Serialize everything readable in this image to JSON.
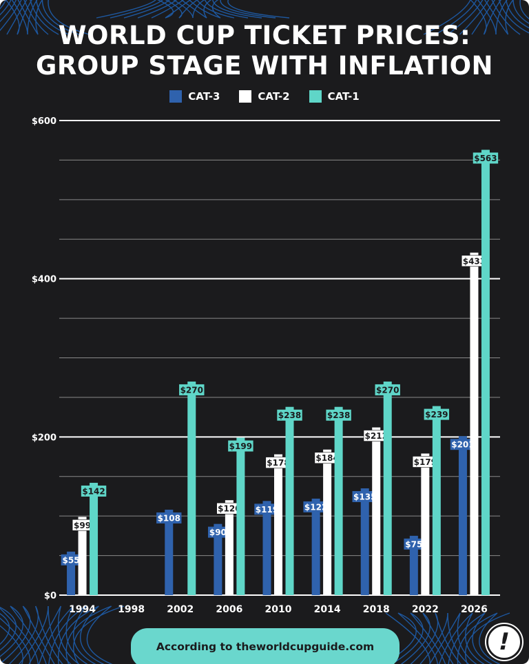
{
  "colors": {
    "background": "#1b1b1d",
    "cat3": "#2f62ad",
    "cat2": "#ffffff",
    "cat1": "#5fd6c8",
    "gridline": "#ffffff",
    "net": "#1f5fae"
  },
  "chart_data": {
    "type": "bar",
    "title": "WORLD CUP TICKET PRICES:\nGROUP STAGE WITH INFLATION",
    "title_line1": "WORLD CUP TICKET PRICES:",
    "title_line2": "GROUP STAGE WITH INFLATION",
    "categories": [
      "1994",
      "1998",
      "2002",
      "2006",
      "2010",
      "2014",
      "2018",
      "2022",
      "2026"
    ],
    "series": [
      {
        "name": "CAT-3",
        "color": "#2f62ad",
        "values": [
          55,
          null,
          108,
          90,
          119,
          122,
          135,
          75,
          201
        ],
        "labels": [
          "$55",
          "",
          "$108",
          "$90",
          "$119",
          "$122",
          "$135",
          "$75",
          "$201"
        ]
      },
      {
        "name": "CAT-2",
        "color": "#ffffff",
        "values": [
          99,
          null,
          null,
          120,
          178,
          184,
          212,
          179,
          433
        ],
        "labels": [
          "$99",
          "",
          "",
          "$120",
          "$178",
          "$184",
          "$212",
          "$179",
          "$433"
        ]
      },
      {
        "name": "CAT-1",
        "color": "#5fd6c8",
        "values": [
          142,
          null,
          270,
          199,
          238,
          238,
          270,
          239,
          563
        ],
        "labels": [
          "$142",
          "",
          "$270",
          "$199",
          "$238",
          "$238",
          "$270",
          "$239",
          "$563"
        ]
      }
    ],
    "ylim": [
      0,
      600
    ],
    "yticks": [
      0,
      200,
      400,
      600
    ],
    "ytick_labels": [
      "$0",
      "$200",
      "$400",
      "$600"
    ],
    "minor_gridlines": [
      50,
      100,
      150,
      250,
      300,
      350,
      450,
      500,
      550
    ],
    "grid": true,
    "legend_position": "top-center",
    "xlabel": "",
    "ylabel": ""
  },
  "legend": {
    "items": [
      {
        "label": "CAT-3",
        "color": "#2f62ad"
      },
      {
        "label": "CAT-2",
        "color": "#ffffff"
      },
      {
        "label": "CAT-1",
        "color": "#5fd6c8"
      }
    ]
  },
  "footer": {
    "text": "According to theworldcupguide.com"
  },
  "badge": {
    "mark": "!"
  }
}
